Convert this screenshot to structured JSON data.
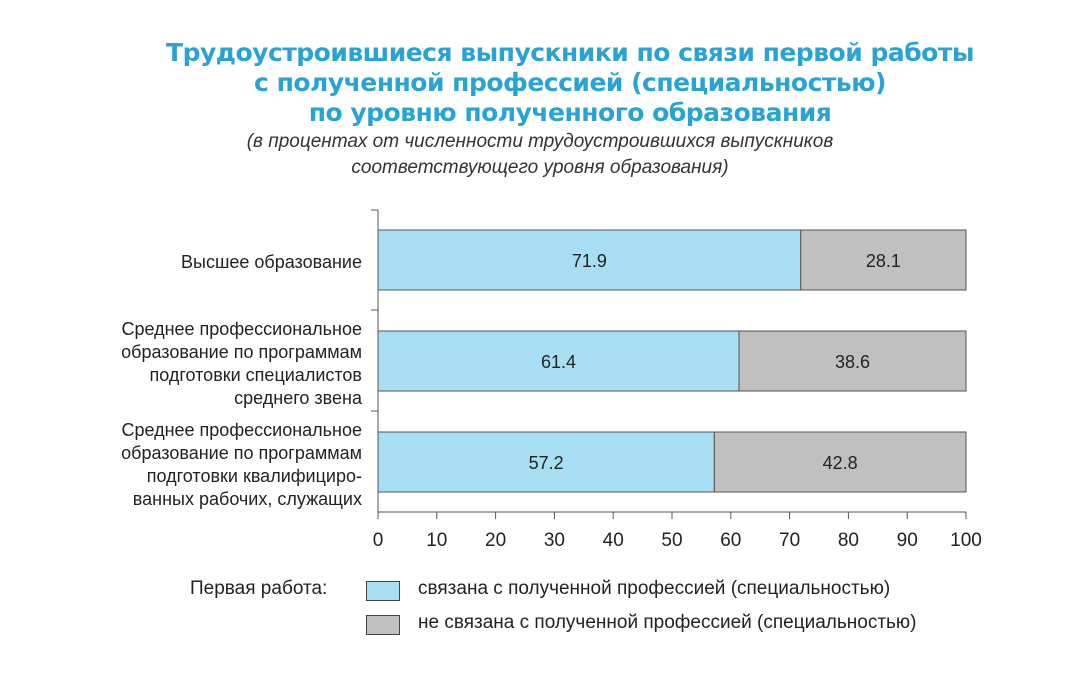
{
  "chart_data": {
    "type": "bar",
    "orientation": "horizontal",
    "stacked": true,
    "title_lines": [
      "Трудоустроившиеся выпускники по связи первой работы",
      "с полученной профессией (специальностью)",
      "по уровню полученного образования"
    ],
    "subtitle_lines": [
      "(в процентах от численности трудоустроившихся выпускников",
      "соответствующего уровня образования)"
    ],
    "categories": [
      [
        "Высшее образование"
      ],
      [
        "Среднее профессиональное",
        "образование по программам",
        "подготовки специалистов",
        "среднего звена"
      ],
      [
        "Среднее профессиональное",
        "образование по программам",
        "подготовки квалифициро-",
        "ванных рабочих, служащих"
      ]
    ],
    "series": [
      {
        "name": "связана с полученной профессией (специальностью)",
        "values": [
          71.9,
          61.4,
          57.2
        ],
        "labels": [
          "71.9",
          "61.4",
          "57.2"
        ],
        "color": "#a8def2"
      },
      {
        "name": "не связана с полученной профессией (специальностью)",
        "values": [
          28.1,
          38.6,
          42.8
        ],
        "labels": [
          "28.1",
          "38.6",
          "42.8"
        ],
        "color": "#c0c0c0"
      }
    ],
    "xlim": [
      0,
      100
    ],
    "xticks": [
      "0",
      "10",
      "20",
      "30",
      "40",
      "50",
      "60",
      "70",
      "80",
      "90",
      "100"
    ],
    "legend_title": "Первая работа:",
    "grid": false
  }
}
